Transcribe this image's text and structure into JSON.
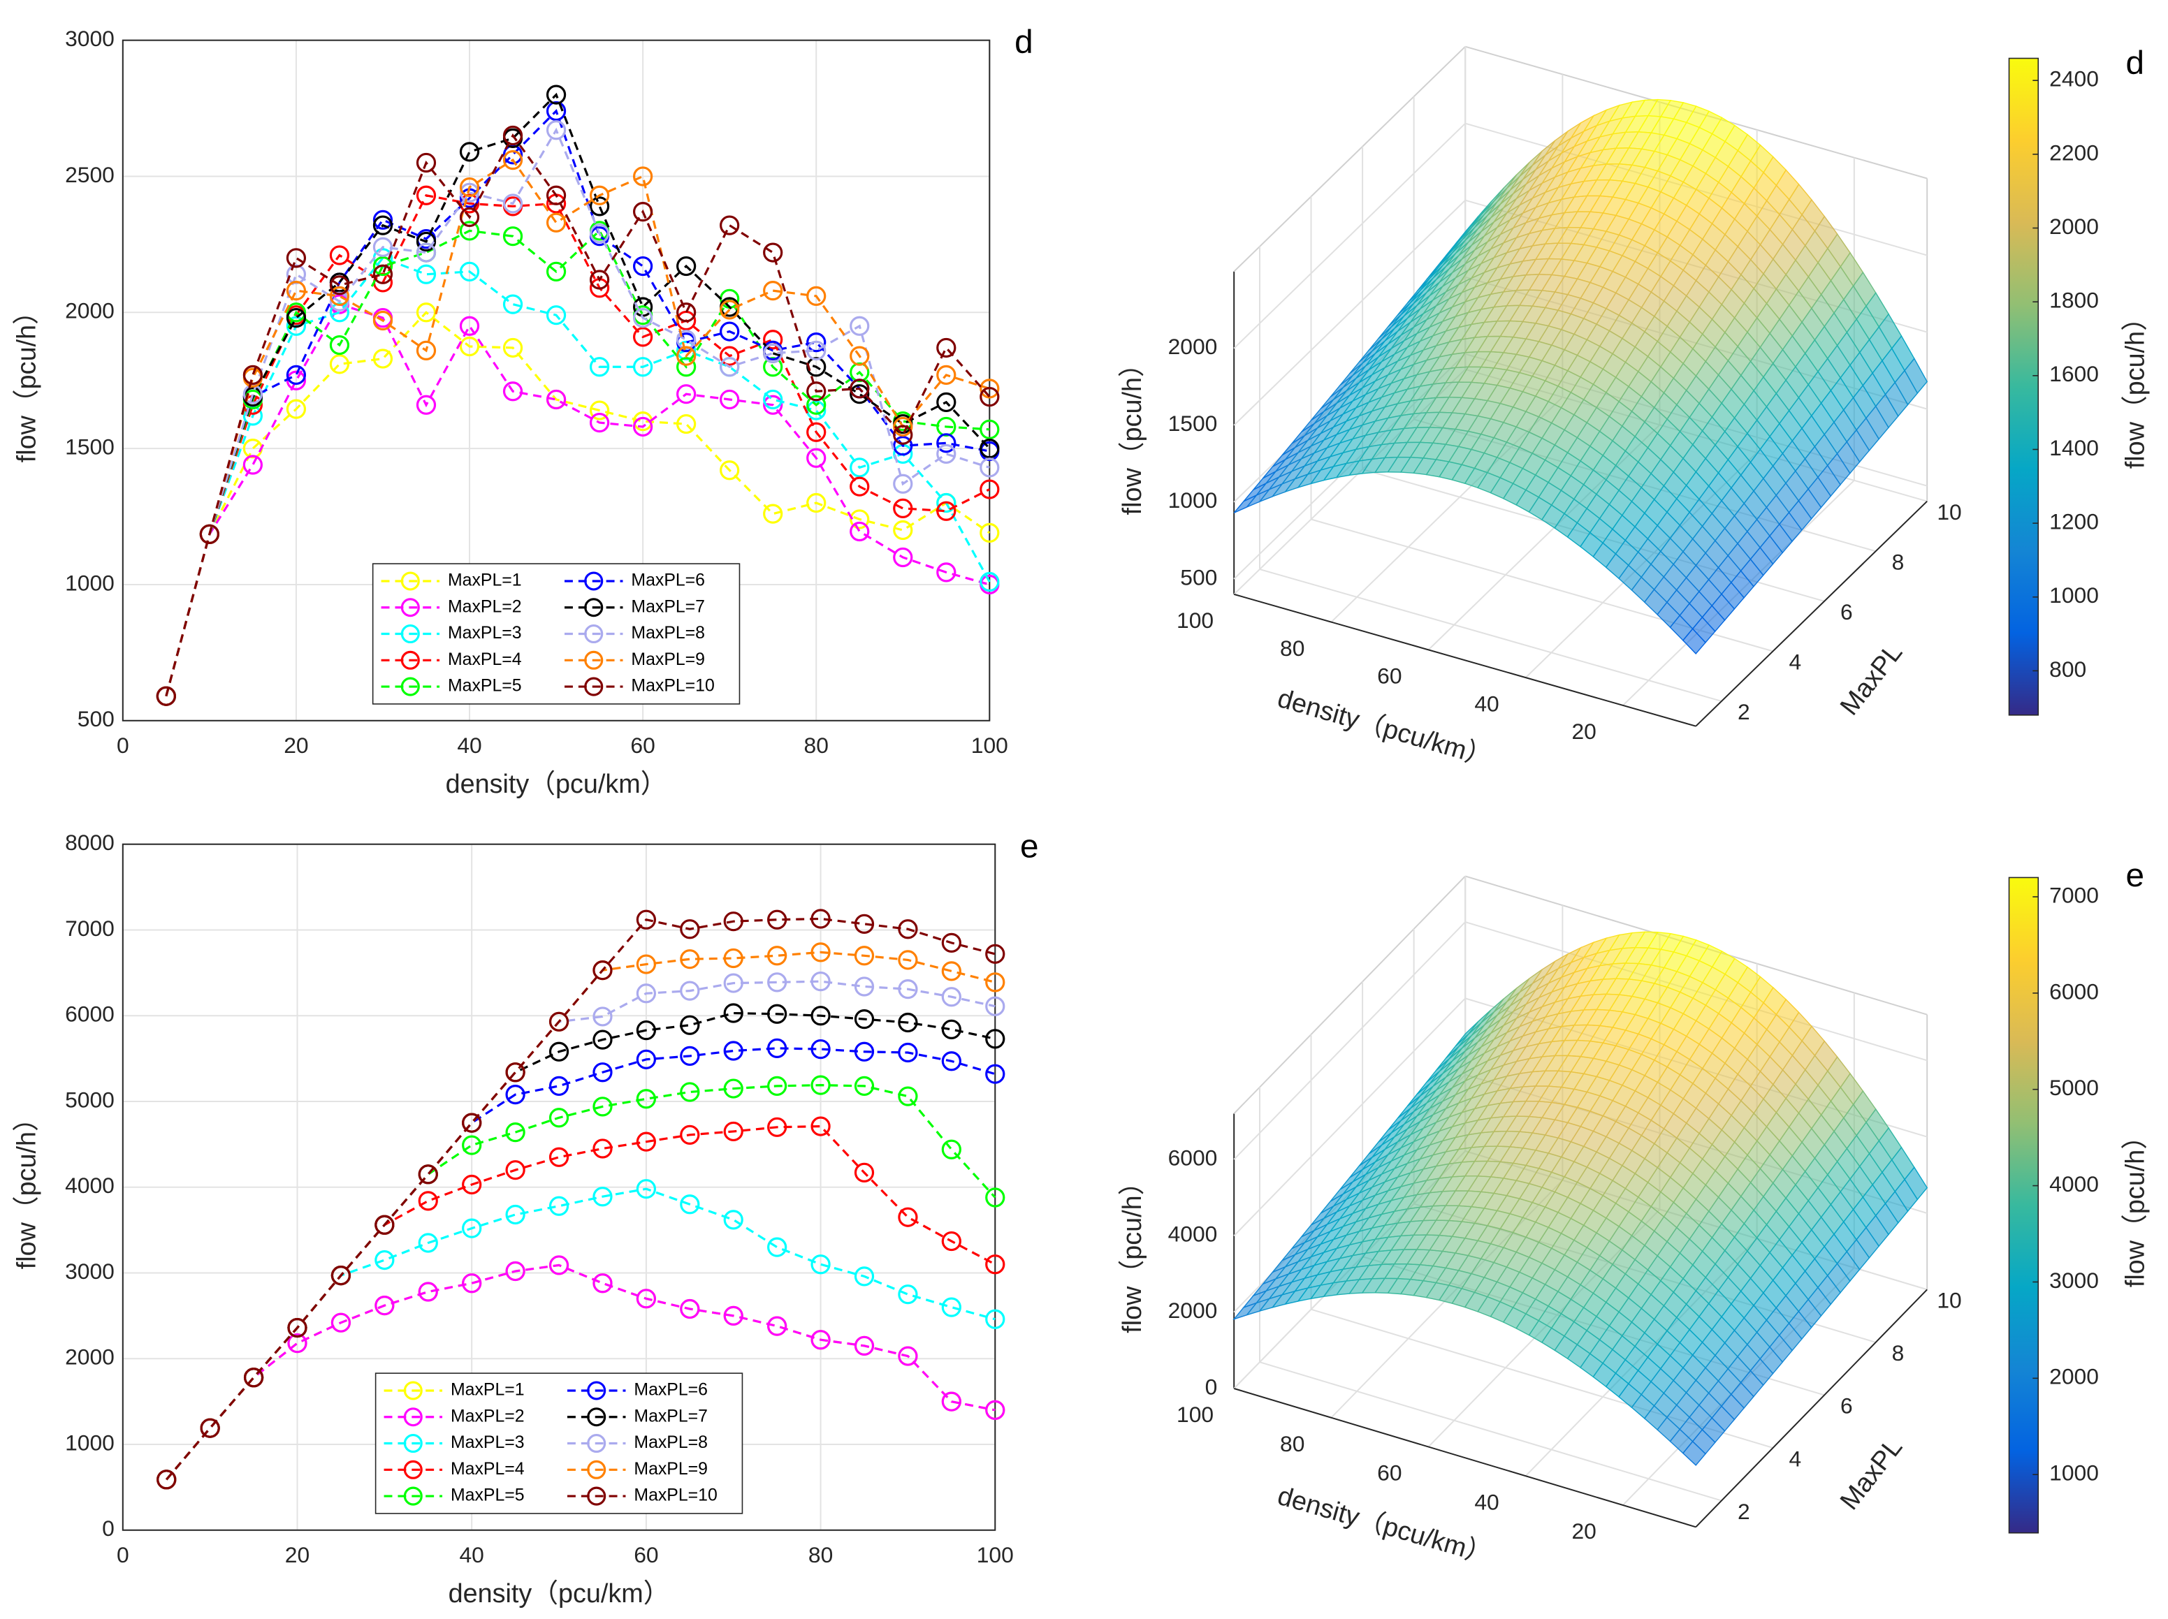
{
  "chart_data": [
    {
      "type": "line",
      "label": "d",
      "xlabel": "density（pcu/km）",
      "ylabel": "flow（pcu/h）",
      "x": [
        5,
        10,
        15,
        20,
        25,
        30,
        35,
        40,
        45,
        50,
        55,
        60,
        65,
        70,
        75,
        80,
        85,
        90,
        95,
        100
      ],
      "xlim": [
        0,
        100
      ],
      "xticks": [
        0,
        20,
        40,
        60,
        80,
        100
      ],
      "ylim": [
        500,
        3000
      ],
      "yticks": [
        500,
        1000,
        1500,
        2000,
        2500,
        3000
      ],
      "grid": true,
      "legend": "lower center",
      "legend_columns": 2,
      "marker": "o",
      "linestyle": "dashed",
      "series": [
        {
          "name": "MaxPL=1",
          "color": "#ffff00",
          "values": [
            590,
            1185,
            1500,
            1645,
            1810,
            1830,
            2000,
            1875,
            1870,
            1680,
            1640,
            1600,
            1590,
            1420,
            1260,
            1300,
            1240,
            1200,
            1300,
            1190
          ]
        },
        {
          "name": "MaxPL=2",
          "color": "#ff00ff",
          "values": [
            590,
            1185,
            1440,
            1750,
            2030,
            1980,
            1660,
            1950,
            1710,
            1680,
            1595,
            1580,
            1700,
            1680,
            1660,
            1465,
            1195,
            1100,
            1045,
            1000
          ]
        },
        {
          "name": "MaxPL=3",
          "color": "#00ffff",
          "values": [
            590,
            1185,
            1620,
            1950,
            2000,
            2200,
            2140,
            2150,
            2030,
            1990,
            1800,
            1800,
            1860,
            1800,
            1680,
            1640,
            1430,
            1480,
            1300,
            1010
          ]
        },
        {
          "name": "MaxPL=4",
          "color": "#ff0000",
          "values": [
            590,
            1185,
            1660,
            1990,
            2210,
            2110,
            2430,
            2400,
            2390,
            2400,
            2090,
            1910,
            1970,
            1840,
            1900,
            1560,
            1360,
            1280,
            1270,
            1350
          ]
        },
        {
          "name": "MaxPL=5",
          "color": "#00ff00",
          "values": [
            590,
            1185,
            1680,
            2000,
            1880,
            2170,
            2220,
            2300,
            2280,
            2150,
            2300,
            1990,
            1800,
            2050,
            1800,
            1660,
            1780,
            1600,
            1580,
            1570
          ]
        },
        {
          "name": "MaxPL=6",
          "color": "#0000ff",
          "values": [
            590,
            1185,
            1690,
            1770,
            2110,
            2340,
            2270,
            2420,
            2580,
            2740,
            2280,
            2170,
            1890,
            1930,
            1860,
            1890,
            1720,
            1510,
            1520,
            1490
          ]
        },
        {
          "name": "MaxPL=7",
          "color": "#000000",
          "values": [
            590,
            1185,
            1690,
            1980,
            2110,
            2320,
            2260,
            2590,
            2640,
            2800,
            2390,
            2020,
            2170,
            2020,
            1850,
            1800,
            1700,
            1590,
            1670,
            1500
          ]
        },
        {
          "name": "MaxPL=8",
          "color": "#aaaaee",
          "values": [
            590,
            1185,
            1700,
            2140,
            2040,
            2240,
            2220,
            2440,
            2400,
            2670,
            2290,
            1980,
            1900,
            1800,
            1850,
            1860,
            1950,
            1370,
            1480,
            1430
          ]
        },
        {
          "name": "MaxPL=9",
          "color": "#ff8000",
          "values": [
            590,
            1185,
            1760,
            2080,
            2060,
            1970,
            1860,
            2460,
            2560,
            2330,
            2430,
            2500,
            1840,
            2010,
            2080,
            2060,
            1840,
            1580,
            1770,
            1720
          ]
        },
        {
          "name": "MaxPL=10",
          "color": "#800000",
          "values": [
            590,
            1185,
            1770,
            2200,
            2100,
            2140,
            2550,
            2350,
            2650,
            2430,
            2120,
            2370,
            2000,
            2320,
            2220,
            1710,
            1720,
            1550,
            1870,
            1690
          ]
        }
      ]
    },
    {
      "type": "surface",
      "label": "d",
      "xlabel": "density（pcu/km）",
      "ylabel": "MaxPL",
      "zlabel": "flow（pcu/h）",
      "xlim": [
        5,
        100
      ],
      "xticks": [
        20,
        40,
        60,
        80,
        100
      ],
      "ylim": [
        1,
        10
      ],
      "yticks": [
        2,
        4,
        6,
        8,
        10
      ],
      "zlim": [
        400,
        2500
      ],
      "zticks": [
        500,
        1000,
        1500,
        2000
      ],
      "colormap": "parula",
      "colorbar": {
        "label": "flow（pcu/h）",
        "clim": [
          680,
          2460
        ],
        "ticks": [
          800,
          1000,
          1200,
          1400,
          1600,
          1800,
          2000,
          2200,
          2400
        ]
      }
    },
    {
      "type": "line",
      "label": "e",
      "xlabel": "density（pcu/km）",
      "ylabel": "flow（pcu/h）",
      "x": [
        5,
        10,
        15,
        20,
        25,
        30,
        35,
        40,
        45,
        50,
        55,
        60,
        65,
        70,
        75,
        80,
        85,
        90,
        95,
        100
      ],
      "xlim": [
        0,
        100
      ],
      "xticks": [
        0,
        20,
        40,
        60,
        80,
        100
      ],
      "ylim": [
        0,
        8000
      ],
      "yticks": [
        0,
        1000,
        2000,
        3000,
        4000,
        5000,
        6000,
        7000,
        8000
      ],
      "grid": true,
      "legend": "lower center",
      "legend_columns": 2,
      "marker": "o",
      "linestyle": "dashed",
      "series": [
        {
          "name": "MaxPL=1",
          "color": "#ffff00",
          "values": [
            590,
            1190,
            1780,
            2180,
            2420,
            2620,
            2780,
            2880,
            3020,
            3090,
            2880,
            2700,
            2580,
            2500,
            2380,
            2220,
            2150,
            2030,
            1500,
            1400
          ]
        },
        {
          "name": "MaxPL=2",
          "color": "#ff00ff",
          "values": [
            590,
            1190,
            1780,
            2180,
            2420,
            2620,
            2780,
            2880,
            3020,
            3090,
            2880,
            2700,
            2580,
            2500,
            2380,
            2220,
            2150,
            2030,
            1500,
            1400
          ]
        },
        {
          "name": "MaxPL=3",
          "color": "#00ffff",
          "values": [
            590,
            1190,
            1780,
            2360,
            2970,
            3150,
            3350,
            3520,
            3680,
            3780,
            3890,
            3980,
            3800,
            3620,
            3300,
            3100,
            2960,
            2750,
            2600,
            2460
          ]
        },
        {
          "name": "MaxPL=4",
          "color": "#ff0000",
          "values": [
            590,
            1190,
            1780,
            2360,
            2970,
            3560,
            3840,
            4030,
            4200,
            4350,
            4450,
            4530,
            4610,
            4650,
            4700,
            4710,
            4170,
            3650,
            3370,
            3100
          ]
        },
        {
          "name": "MaxPL=5",
          "color": "#00ff00",
          "values": [
            590,
            1190,
            1780,
            2360,
            2970,
            3560,
            4150,
            4490,
            4640,
            4810,
            4940,
            5030,
            5110,
            5150,
            5180,
            5190,
            5180,
            5060,
            4440,
            3880
          ]
        },
        {
          "name": "MaxPL=6",
          "color": "#0000ff",
          "values": [
            590,
            1190,
            1780,
            2360,
            2970,
            3560,
            4150,
            4750,
            5080,
            5180,
            5340,
            5490,
            5530,
            5590,
            5620,
            5610,
            5580,
            5570,
            5470,
            5320
          ]
        },
        {
          "name": "MaxPL=7",
          "color": "#000000",
          "values": [
            590,
            1190,
            1780,
            2360,
            2970,
            3560,
            4150,
            4750,
            5340,
            5580,
            5720,
            5830,
            5890,
            6030,
            6020,
            6000,
            5960,
            5920,
            5840,
            5730
          ]
        },
        {
          "name": "MaxPL=8",
          "color": "#aaaaee",
          "values": [
            590,
            1190,
            1780,
            2360,
            2970,
            3560,
            4150,
            4750,
            5340,
            5930,
            5990,
            6260,
            6290,
            6380,
            6390,
            6400,
            6340,
            6310,
            6220,
            6110
          ]
        },
        {
          "name": "MaxPL=9",
          "color": "#ff8000",
          "values": [
            590,
            1190,
            1780,
            2360,
            2970,
            3560,
            4150,
            4750,
            5340,
            5930,
            6530,
            6600,
            6660,
            6670,
            6700,
            6740,
            6700,
            6650,
            6520,
            6390
          ]
        },
        {
          "name": "MaxPL=10",
          "color": "#800000",
          "values": [
            590,
            1190,
            1780,
            2360,
            2970,
            3560,
            4150,
            4750,
            5340,
            5930,
            6530,
            7120,
            7010,
            7100,
            7120,
            7130,
            7070,
            7010,
            6850,
            6720
          ]
        }
      ]
    },
    {
      "type": "surface",
      "label": "e",
      "xlabel": "density（pcu/km）",
      "ylabel": "MaxPL",
      "zlabel": "flow（pcu/h）",
      "xlim": [
        5,
        100
      ],
      "xticks": [
        20,
        40,
        60,
        80,
        100
      ],
      "ylim": [
        1,
        10
      ],
      "yticks": [
        2,
        4,
        6,
        8,
        10
      ],
      "zlim": [
        0,
        7200
      ],
      "zticks": [
        0,
        2000,
        4000,
        6000
      ],
      "colormap": "parula",
      "colorbar": {
        "label": "flow（pcu/h）",
        "clim": [
          394,
          7200
        ],
        "ticks": [
          1000,
          2000,
          3000,
          4000,
          5000,
          6000,
          7000
        ]
      }
    }
  ]
}
